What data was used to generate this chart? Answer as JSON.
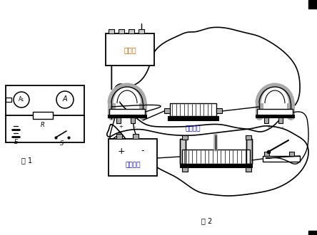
{
  "bg_color": "#ffffff",
  "line_color": "#000000",
  "gray_color": "#888888",
  "light_gray": "#aaaaaa",
  "orange_color": "#cc6600",
  "blue_color": "#0000cc",
  "fig1_label": "图 1",
  "fig2_label": "图 2",
  "label_A1": "A₁",
  "label_A": "A",
  "label_R": "R",
  "label_E": "E",
  "label_S": "S",
  "label_dianzuxiang": "电阻箱",
  "label_dingzhi": "定值电阻",
  "label_zhiliuyuandian": "直流电源"
}
